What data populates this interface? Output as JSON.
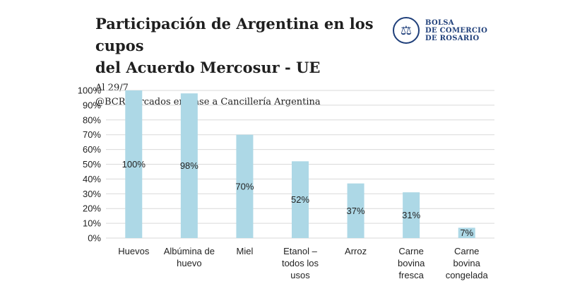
{
  "header": {
    "title_line1": "Participación de Argentina en los cupos",
    "title_line2": "del Acuerdo Mercosur - UE",
    "subtitle_date": "Al 29/7",
    "subtitle_source": "@BCRmercados en base a Cancillería Argentina"
  },
  "logo": {
    "line1": "BOLSA",
    "line2": "DE COMERCIO",
    "line3": "DE ROSARIO",
    "icon": "scales-of-justice-icon"
  },
  "colors": {
    "bar": "#add8e6",
    "grid": "#d9d9d9",
    "text": "#222222"
  },
  "chart_data": {
    "type": "bar",
    "categories": [
      [
        "Huevos"
      ],
      [
        "Albúmina de",
        "huevo"
      ],
      [
        "Miel"
      ],
      [
        "Etanol –",
        "todos los",
        "usos"
      ],
      [
        "Arroz"
      ],
      [
        "Carne",
        "bovina",
        "fresca"
      ],
      [
        "Carne",
        "bovina",
        "congelada"
      ]
    ],
    "values": [
      100,
      98,
      70,
      52,
      37,
      31,
      7
    ],
    "data_labels": [
      "100%",
      "98%",
      "70%",
      "52%",
      "37%",
      "31%",
      "7%"
    ],
    "ylim": [
      0,
      100
    ],
    "yticks": [
      0,
      10,
      20,
      30,
      40,
      50,
      60,
      70,
      80,
      90,
      100
    ],
    "ytick_suffix": "%",
    "grid": true,
    "legend": "none"
  }
}
